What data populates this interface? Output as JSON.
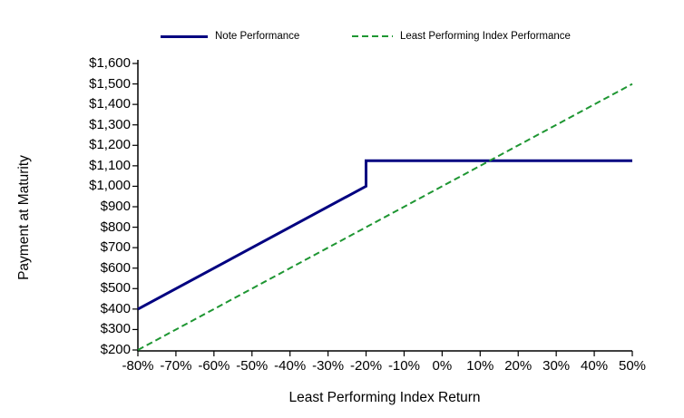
{
  "chart_data": {
    "type": "line",
    "title": "",
    "xlabel": "Least Performing Index Return",
    "ylabel": "Payment at Maturity",
    "xlim": [
      -80,
      50
    ],
    "ylim": [
      200,
      1600
    ],
    "grid": false,
    "legend_position": "top",
    "x_ticks": [
      -80,
      -70,
      -60,
      -50,
      -40,
      -30,
      -20,
      -10,
      0,
      10,
      20,
      30,
      40,
      50
    ],
    "x_tick_labels": [
      "-80%",
      "-70%",
      "-60%",
      "-50%",
      "-40%",
      "-30%",
      "-20%",
      "-10%",
      "0%",
      "10%",
      "20%",
      "30%",
      "40%",
      "50%"
    ],
    "y_ticks": [
      200,
      300,
      400,
      500,
      600,
      700,
      800,
      900,
      1000,
      1100,
      1200,
      1300,
      1400,
      1500,
      1600
    ],
    "y_tick_labels": [
      "$200",
      "$300",
      "$400",
      "$500",
      "$600",
      "$700",
      "$800",
      "$900",
      "$1,000",
      "$1,100",
      "$1,200",
      "$1,300",
      "$1,400",
      "$1,500",
      "$1,600"
    ],
    "axis_color": "#000000",
    "series": [
      {
        "name": "Note Performance",
        "color": "#000080",
        "style": "solid",
        "width": 3,
        "points": [
          [
            -80,
            400
          ],
          [
            -20,
            1000
          ],
          [
            -20,
            1125
          ],
          [
            50,
            1125
          ]
        ]
      },
      {
        "name": "Least Performing Index Performance",
        "color": "#1E9632",
        "style": "dashed",
        "width": 2,
        "points": [
          [
            -80,
            200
          ],
          [
            50,
            1500
          ]
        ]
      }
    ]
  }
}
